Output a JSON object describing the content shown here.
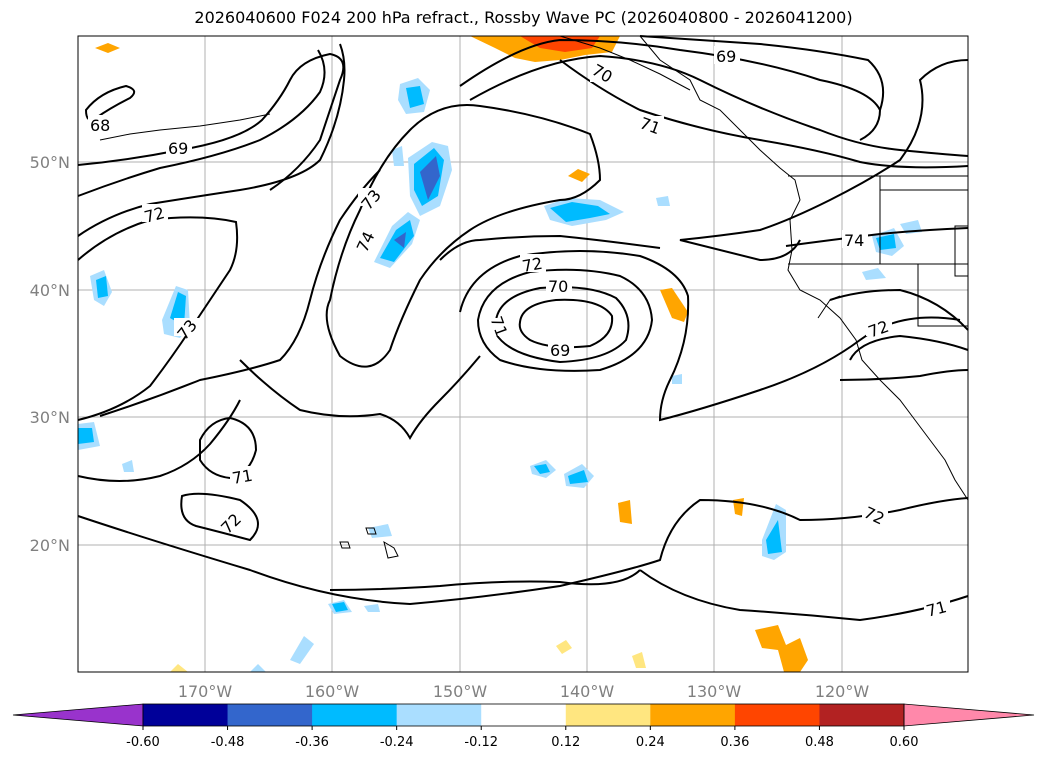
{
  "title": "2026040600 F024 200 hPa refract., Rossby Wave PC (2026040800 - 2026041200)",
  "lon_labels": [
    "170°W",
    "160°W",
    "150°W",
    "140°W",
    "130°W",
    "120°W"
  ],
  "lat_labels": [
    "50°N",
    "40°N",
    "30°N",
    "20°N"
  ],
  "contour_labels": [
    "68",
    "69",
    "72",
    "73",
    "74",
    "73",
    "71",
    "72",
    "69",
    "70",
    "71",
    "72",
    "70",
    "71",
    "69",
    "74",
    "72",
    "72",
    "71"
  ],
  "colorbar": {
    "ticks": [
      "-0.60",
      "-0.48",
      "-0.36",
      "-0.24",
      "-0.12",
      "0.12",
      "0.24",
      "0.36",
      "0.48",
      "0.60"
    ],
    "colors": [
      "#9933cc",
      "#000099",
      "#3366cc",
      "#00bbff",
      "#aadeff",
      "#ffffff",
      "#ffe680",
      "#ffa500",
      "#ff4500",
      "#b22222",
      "#ff88aa"
    ]
  }
}
